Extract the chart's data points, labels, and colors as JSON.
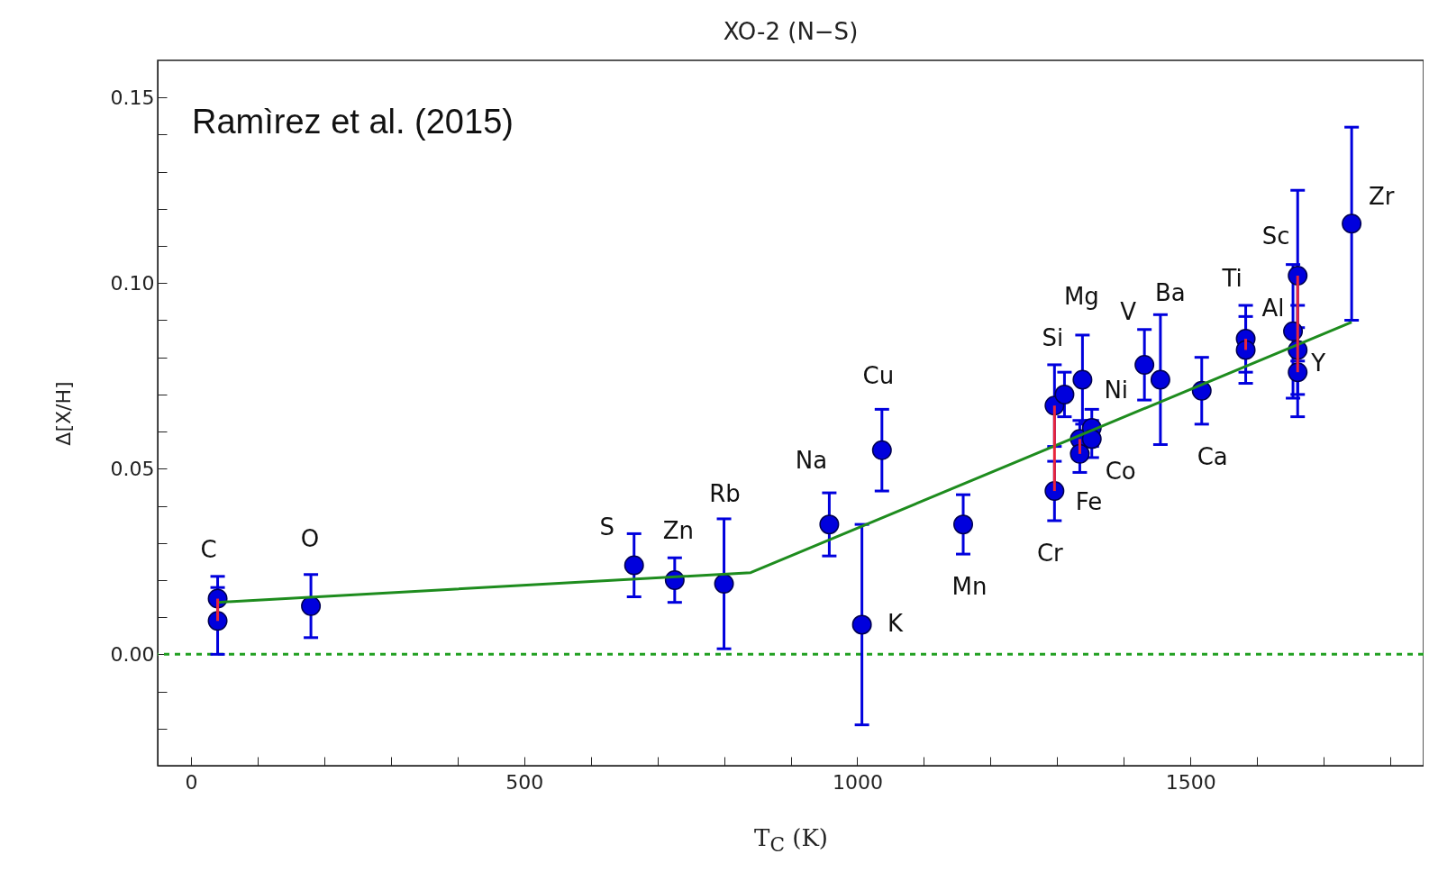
{
  "chart_data": {
    "type": "scatter",
    "title": "XO-2 (N−S)",
    "xlabel": "T$_{C}$ (K)",
    "ylabel": "Δ[X/H]",
    "xlim": [
      -50,
      1850
    ],
    "ylim": [
      -0.03,
      0.16
    ],
    "xticks": [
      {
        "value": 0,
        "label": "0"
      },
      {
        "value": 100,
        "label": null
      },
      {
        "value": 200,
        "label": null
      },
      {
        "value": 300,
        "label": null
      },
      {
        "value": 400,
        "label": null
      },
      {
        "value": 500,
        "label": "500"
      },
      {
        "value": 600,
        "label": null
      },
      {
        "value": 700,
        "label": null
      },
      {
        "value": 800,
        "label": null
      },
      {
        "value": 900,
        "label": null
      },
      {
        "value": 1000,
        "label": "1000"
      },
      {
        "value": 1100,
        "label": null
      },
      {
        "value": 1200,
        "label": null
      },
      {
        "value": 1300,
        "label": null
      },
      {
        "value": 1400,
        "label": null
      },
      {
        "value": 1500,
        "label": "1500"
      },
      {
        "value": 1600,
        "label": null
      },
      {
        "value": 1700,
        "label": null
      },
      {
        "value": 1800,
        "label": null
      }
    ],
    "yticks": [
      {
        "value": -0.02,
        "label": null
      },
      {
        "value": -0.01,
        "label": null
      },
      {
        "value": 0,
        "label": "0.00"
      },
      {
        "value": 0.01,
        "label": null
      },
      {
        "value": 0.02,
        "label": null
      },
      {
        "value": 0.03,
        "label": null
      },
      {
        "value": 0.04,
        "label": null
      },
      {
        "value": 0.05,
        "label": "0.05"
      },
      {
        "value": 0.06,
        "label": null
      },
      {
        "value": 0.07,
        "label": null
      },
      {
        "value": 0.08,
        "label": null
      },
      {
        "value": 0.09,
        "label": null
      },
      {
        "value": 0.1,
        "label": "0.10"
      },
      {
        "value": 0.11,
        "label": null
      },
      {
        "value": 0.12,
        "label": null
      },
      {
        "value": 0.13,
        "label": null
      },
      {
        "value": 0.14,
        "label": null
      },
      {
        "value": 0.15,
        "label": "0.15"
      }
    ],
    "ref_lines": [
      {
        "axis": "y",
        "value": 0,
        "color": "#22a022",
        "line_style": "dashed"
      }
    ],
    "series": [
      {
        "color": "#0000dd",
        "marker": "circle",
        "x": [
          40,
          40,
          180,
          665,
          726,
          800,
          958,
          1007,
          1037,
          1159,
          1296,
          1296,
          1311,
          1338,
          1334,
          1334,
          1352,
          1352,
          1431,
          1455,
          1517,
          1583,
          1583,
          1654,
          1661,
          1661,
          1661,
          1742
        ],
        "values": [
          0.015,
          0.009,
          0.013,
          0.024,
          0.02,
          0.019,
          0.035,
          0.008,
          0.055,
          0.035,
          0.067,
          0.044,
          0.07,
          0.074,
          0.058,
          0.054,
          0.061,
          0.058,
          0.078,
          0.074,
          0.071,
          0.085,
          0.082,
          0.087,
          0.102,
          0.076,
          0.082,
          0.116
        ],
        "errors": [
          0.006,
          0.009,
          0.0085,
          0.0085,
          0.006,
          0.0175,
          0.0085,
          0.027,
          0.011,
          0.008,
          0.011,
          0.008,
          0.006,
          0.012,
          0.005,
          0.005,
          0.005,
          0.005,
          0.0095,
          0.0175,
          0.009,
          0.009,
          0.009,
          0.018,
          0.023,
          0.012,
          0.012,
          0.026
        ]
      },
      {
        "type": "line",
        "color": "#1e8c1e",
        "x": [
          40,
          840,
          1742
        ],
        "values": [
          0.014,
          0.022,
          0.0895
        ]
      },
      {
        "type": "line",
        "color": "#e8253c",
        "x": [
          40,
          40
        ],
        "values": [
          0.015,
          0.009
        ]
      },
      {
        "type": "line",
        "color": "#e8253c",
        "x": [
          1296,
          1296
        ],
        "values": [
          0.067,
          0.044
        ]
      },
      {
        "type": "line",
        "color": "#e8253c",
        "x": [
          1334,
          1334
        ],
        "values": [
          0.058,
          0.054
        ]
      },
      {
        "type": "line",
        "color": "#e8253c",
        "x": [
          1583,
          1583
        ],
        "values": [
          0.085,
          0.082
        ]
      },
      {
        "type": "line",
        "color": "#e8253c",
        "x": [
          1661,
          1661
        ],
        "values": [
          0.102,
          0.076
        ]
      }
    ],
    "annotations": [
      "Ramìrez et al. (2015)",
      {
        "text": "C",
        "x": 40,
        "y": 0.015
      },
      {
        "text": "O",
        "x": 180,
        "y": 0.013
      },
      {
        "text": "S",
        "x": 665,
        "y": 0.024
      },
      {
        "text": "Zn",
        "x": 726,
        "y": 0.02
      },
      {
        "text": "Rb",
        "x": 800,
        "y": 0.0365
      },
      {
        "text": "Na",
        "x": 958,
        "y": 0.035
      },
      {
        "text": "K",
        "x": 1007,
        "y": 0.008
      },
      {
        "text": "Cu",
        "x": 1037,
        "y": 0.055
      },
      {
        "text": "Mn",
        "x": 1159,
        "y": 0.035
      },
      {
        "text": "Cr",
        "x": 1296,
        "y": 0.044
      },
      {
        "text": "Fe",
        "x": 1334,
        "y": 0.054
      },
      {
        "text": "Si",
        "x": 1311,
        "y": 0.07
      },
      {
        "text": "Mg",
        "x": 1338,
        "y": 0.074
      },
      {
        "text": "Ni",
        "x": 1352,
        "y": 0.061
      },
      {
        "text": "Co",
        "x": 1352,
        "y": 0.058
      },
      {
        "text": "V",
        "x": 1431,
        "y": 0.078
      },
      {
        "text": "Ba",
        "x": 1455,
        "y": 0.0915
      },
      {
        "text": "Ca",
        "x": 1517,
        "y": 0.071
      },
      {
        "text": "Ti",
        "x": 1583,
        "y": 0.085
      },
      {
        "text": "Al",
        "x": 1654,
        "y": 0.087
      },
      {
        "text": "Sc",
        "x": 1661,
        "y": 0.102
      },
      {
        "text": "Y",
        "x": 1661,
        "y": 0.082
      },
      {
        "text": "Zr",
        "x": 1742,
        "y": 0.116
      }
    ]
  }
}
